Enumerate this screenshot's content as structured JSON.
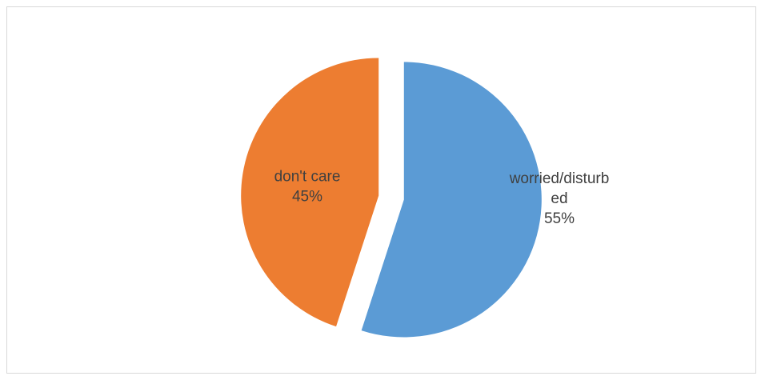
{
  "chart_data": {
    "type": "pie",
    "exploded": true,
    "categories": [
      "worried/disturbed",
      "don't care"
    ],
    "values": [
      55,
      45
    ],
    "slices": [
      {
        "label_lines": [
          "worried/disturb",
          "ed"
        ],
        "percent_label": "55%",
        "value": 55,
        "color": "#5b9bd5"
      },
      {
        "label_lines": [
          "don't care"
        ],
        "percent_label": "45%",
        "value": 45,
        "color": "#ed7d31"
      }
    ],
    "legend": "none"
  }
}
